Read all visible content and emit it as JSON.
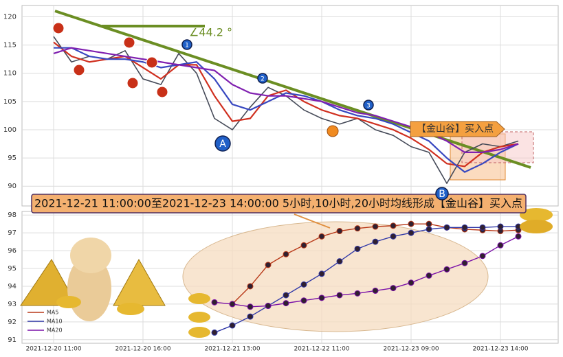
{
  "chart_data": {
    "type": "line",
    "banner": "2021-12-21 11:00:00至2021-12-23 14:00:00 5小时,10小时,20小时均线形成【金山谷】买入点",
    "buy_label": "【金山谷】买入点",
    "angle_label": "∠44.2 °",
    "point_labels": [
      "1",
      "2",
      "3",
      "A",
      "B"
    ],
    "categories": [
      "2021-12-20 11:00",
      null,
      null,
      null,
      null,
      "2021-12-20 16:00",
      null,
      null,
      null,
      null,
      "2021-12-21 13:00",
      null,
      null,
      null,
      null,
      "2021-12-22 11:00",
      null,
      null,
      null,
      null,
      "2021-12-23 09:00",
      null,
      null,
      null,
      null,
      "2021-12-23 14:00",
      null
    ],
    "ylim": [
      86.5,
      122
    ],
    "yticks": [
      90,
      95,
      100,
      105,
      110,
      115,
      120
    ],
    "grid": true,
    "series": [
      {
        "color": "#454a58",
        "values": [
          116.5,
          112,
          113,
          112.5,
          114,
          109,
          108,
          113.5,
          110,
          102,
          100,
          104,
          107.5,
          106,
          103.5,
          102,
          101,
          102,
          100,
          99,
          97,
          96,
          90.5,
          96,
          97.5,
          97,
          98
        ]
      },
      {
        "color": "#d03020",
        "values": [
          115.5,
          113,
          112,
          112.5,
          113,
          111,
          109,
          111.5,
          111.5,
          106,
          101.5,
          102,
          106,
          107,
          105,
          103.5,
          102.5,
          102,
          101,
          100,
          98.5,
          96.5,
          94,
          93.5,
          96,
          97,
          97.5
        ]
      },
      {
        "color": "#3848c0",
        "values": [
          114.5,
          114.5,
          113,
          112.5,
          112.5,
          112,
          111,
          111.5,
          112,
          109,
          104.5,
          103.5,
          105,
          106.5,
          106,
          105,
          103.5,
          102.5,
          102,
          101,
          99.5,
          98,
          95,
          92.5,
          94,
          96,
          97.5
        ]
      },
      {
        "color": "#8020b0",
        "values": [
          113.5,
          114.5,
          114,
          113.5,
          113,
          112.5,
          112,
          111.5,
          111,
          110.5,
          108,
          106.5,
          106,
          106,
          105.5,
          105,
          104,
          103,
          102.5,
          101.5,
          100.5,
          99.5,
          98,
          96,
          96,
          96.5,
          97.5
        ]
      }
    ],
    "lower_panel": {
      "ylim": [
        90.8,
        98.2
      ],
      "yticks": [
        91,
        92,
        93,
        94,
        95,
        96,
        97,
        98
      ],
      "series": [
        {
          "name": "MA5",
          "color": "#b83818",
          "values": [
            null,
            null,
            null,
            null,
            null,
            null,
            null,
            null,
            null,
            null,
            93.0,
            94.0,
            95.2,
            95.8,
            96.3,
            96.8,
            97.1,
            97.25,
            97.35,
            97.4,
            97.5,
            97.5,
            97.3,
            97.2,
            97.15,
            97.1,
            97.15
          ]
        },
        {
          "name": "MA10",
          "color": "#3038a8",
          "values": [
            null,
            null,
            null,
            null,
            null,
            null,
            null,
            null,
            null,
            91.4,
            91.8,
            92.3,
            92.9,
            93.5,
            94.1,
            94.7,
            95.4,
            96.1,
            96.5,
            96.8,
            97.0,
            97.2,
            97.3,
            97.3,
            97.3,
            97.35,
            97.35
          ]
        },
        {
          "name": "MA20",
          "color": "#7a10a8",
          "values": [
            null,
            null,
            null,
            null,
            null,
            null,
            null,
            null,
            null,
            93.1,
            93.0,
            92.85,
            92.9,
            93.05,
            93.2,
            93.35,
            93.5,
            93.6,
            93.75,
            93.9,
            94.2,
            94.6,
            94.95,
            95.3,
            95.7,
            96.3,
            96.8
          ]
        }
      ]
    }
  }
}
